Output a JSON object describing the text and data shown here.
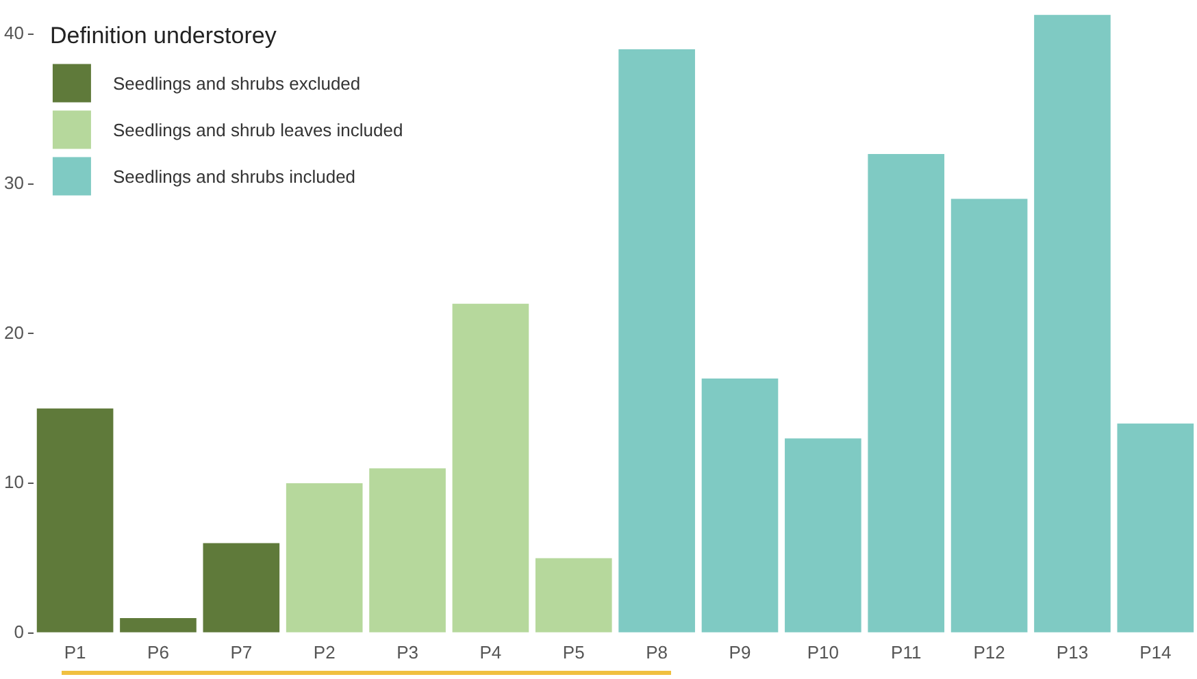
{
  "chart_data": {
    "type": "bar",
    "stacked": true,
    "legend_title": "Definition understorey",
    "legend": "top left",
    "categories": [
      "P1",
      "P6",
      "P7",
      "P2",
      "P3",
      "P4",
      "P5",
      "P8",
      "P9",
      "P10",
      "P11",
      "P12",
      "P13",
      "P14"
    ],
    "series": [
      {
        "name": "Seedlings and shrubs excluded",
        "color": "#5f7a3a",
        "values": [
          15,
          1,
          6,
          null,
          null,
          null,
          null,
          null,
          null,
          null,
          null,
          null,
          null,
          null
        ]
      },
      {
        "name": "Seedlings and shrub leaves included",
        "color": "#b6d89c",
        "values": [
          null,
          null,
          null,
          10,
          11,
          22,
          5,
          null,
          null,
          null,
          null,
          null,
          null,
          null
        ]
      },
      {
        "name": "Seedlings and shrubs included",
        "color": "#7fcac3",
        "values": [
          null,
          null,
          null,
          null,
          null,
          null,
          null,
          39,
          17,
          13,
          32,
          29,
          41.3,
          14
        ]
      }
    ],
    "ylim": [
      0,
      41.3
    ],
    "yticks": [
      0,
      10,
      20,
      30,
      40
    ],
    "grid": false
  }
}
